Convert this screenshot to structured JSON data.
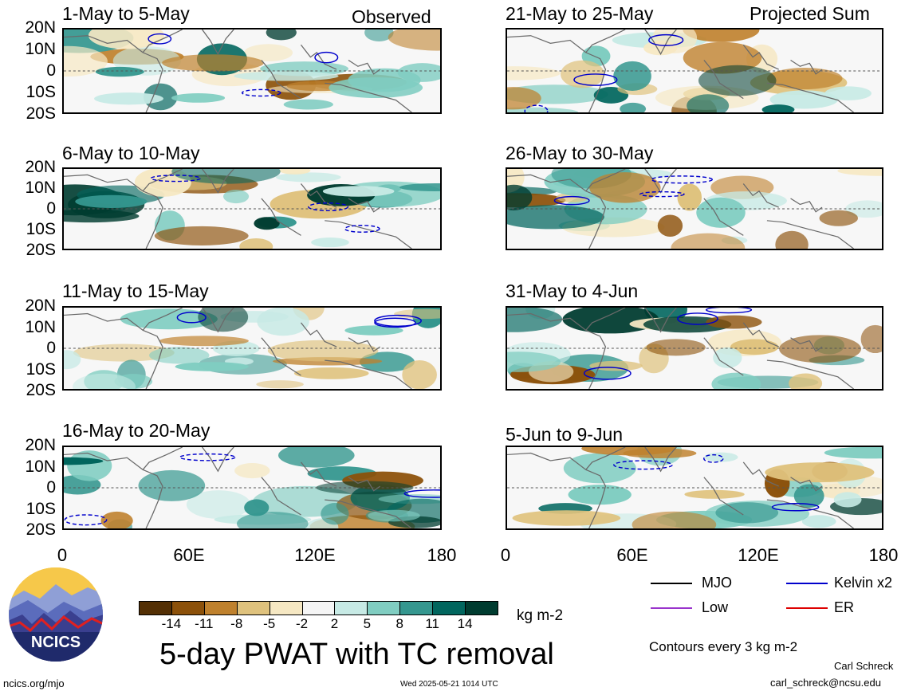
{
  "header": {
    "observed": "Observed",
    "projected": "Projected Sum"
  },
  "panels": [
    {
      "title": "1-May to 5-May",
      "column": "observed"
    },
    {
      "title": "6-May to 10-May",
      "column": "observed"
    },
    {
      "title": "11-May to 15-May",
      "column": "observed"
    },
    {
      "title": "16-May to 20-May",
      "column": "observed"
    },
    {
      "title": "21-May to 25-May",
      "column": "projected"
    },
    {
      "title": "26-May to 30-May",
      "column": "projected"
    },
    {
      "title": "31-May to 4-Jun",
      "column": "projected"
    },
    {
      "title": "5-Jun to 9-Jun",
      "column": "projected"
    }
  ],
  "lat_labels": [
    "20N",
    "10N",
    "0",
    "10S",
    "20S"
  ],
  "lon_labels": [
    "0",
    "60E",
    "120E",
    "180"
  ],
  "colorbar": {
    "colors": [
      "#543005",
      "#8c510a",
      "#bf812d",
      "#dfc27d",
      "#f6e8c3",
      "#f5f5f5",
      "#c7eae5",
      "#80cdc1",
      "#35978f",
      "#01665e",
      "#003c30"
    ],
    "labels": [
      "-14",
      "-11",
      "-8",
      "-5",
      "-2",
      "2",
      "5",
      "8",
      "11",
      "14"
    ],
    "units": "kg m-2"
  },
  "legend": {
    "items": [
      {
        "label": "MJO",
        "color": "#000000"
      },
      {
        "label": "Kelvin x2",
        "color": "#0000cc"
      },
      {
        "label": "Low",
        "color": "#9933cc"
      },
      {
        "label": "ER",
        "color": "#dd0000"
      }
    ],
    "contours_note": "Contours every 3 kg m-2"
  },
  "main_title": "5-day PWAT with TC removal",
  "footer": {
    "site": "ncics.org/mjo",
    "timestamp": "Wed 2025-05-21 1014 UTC",
    "author": "Carl Schreck",
    "email": "carl_schreck@ncsu.edu"
  },
  "logo": {
    "text": "NCICS"
  }
}
